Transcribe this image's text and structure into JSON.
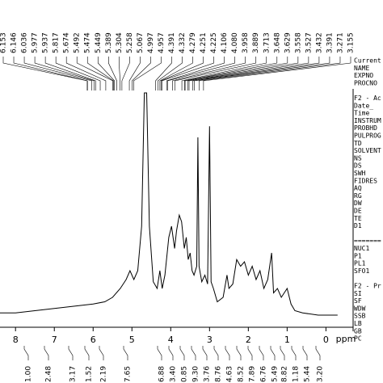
{
  "chart_data": {
    "type": "line",
    "xlabel": "ppm",
    "xlim": [
      8.4,
      -0.7
    ],
    "xticks": [
      8,
      7,
      6,
      5,
      4,
      3,
      2,
      1,
      0
    ],
    "ylim": [
      0,
      100
    ],
    "color": "#000000",
    "x": [
      8.4,
      8.0,
      7.5,
      7.0,
      6.5,
      6.0,
      5.7,
      5.5,
      5.3,
      5.15,
      5.05,
      4.95,
      4.85,
      4.75,
      4.68,
      4.62,
      4.55,
      4.45,
      4.35,
      4.28,
      4.22,
      4.15,
      4.05,
      3.98,
      3.9,
      3.85,
      3.78,
      3.72,
      3.65,
      3.6,
      3.55,
      3.5,
      3.45,
      3.4,
      3.33,
      3.3,
      3.27,
      3.2,
      3.12,
      3.05,
      3.0,
      2.96,
      2.9,
      2.8,
      2.65,
      2.55,
      2.5,
      2.4,
      2.3,
      2.2,
      2.1,
      2.0,
      1.9,
      1.8,
      1.7,
      1.6,
      1.5,
      1.4,
      1.35,
      1.25,
      1.15,
      1.0,
      0.9,
      0.8,
      0.6,
      0.2,
      -0.3
    ],
    "values": [
      1,
      1,
      2,
      3,
      4,
      5,
      6,
      8,
      12,
      16,
      20,
      16,
      20,
      40,
      100,
      100,
      40,
      15,
      12,
      20,
      12,
      18,
      35,
      40,
      30,
      38,
      45,
      42,
      30,
      35,
      25,
      28,
      20,
      18,
      22,
      80,
      22,
      15,
      18,
      14,
      85,
      15,
      12,
      6,
      8,
      18,
      12,
      14,
      25,
      22,
      24,
      18,
      22,
      16,
      20,
      12,
      16,
      28,
      10,
      12,
      8,
      12,
      5,
      2,
      1,
      0,
      0
    ],
    "peak_labels": [
      {
        "value": 6.153,
        "label": "6.153"
      },
      {
        "value": 6.146,
        "label": "6.146"
      },
      {
        "value": 6.036,
        "label": "6.036"
      },
      {
        "value": 5.977,
        "label": "5.977"
      },
      {
        "value": 5.937,
        "label": "5.937"
      },
      {
        "value": 5.817,
        "label": "5.817"
      },
      {
        "value": 5.674,
        "label": "5.674"
      },
      {
        "value": 5.492,
        "label": "5.492"
      },
      {
        "value": 5.474,
        "label": "5.474"
      },
      {
        "value": 5.449,
        "label": "5.449"
      },
      {
        "value": 5.389,
        "label": "5.389"
      },
      {
        "value": 5.304,
        "label": "5.304"
      },
      {
        "value": 5.258,
        "label": "5.258"
      },
      {
        "value": 5.067,
        "label": "5.067"
      },
      {
        "value": 4.997,
        "label": "4.997"
      },
      {
        "value": 4.957,
        "label": "4.957"
      },
      {
        "value": 4.391,
        "label": "4.391"
      },
      {
        "value": 4.332,
        "label": "4.332"
      },
      {
        "value": 4.279,
        "label": "4.279"
      },
      {
        "value": 4.251,
        "label": "4.251"
      },
      {
        "value": 4.225,
        "label": "4.225"
      },
      {
        "value": 4.106,
        "label": "4.106"
      },
      {
        "value": 4.08,
        "label": "4.080"
      },
      {
        "value": 3.958,
        "label": "3.958"
      },
      {
        "value": 3.889,
        "label": "3.889"
      },
      {
        "value": 3.713,
        "label": "3.713"
      },
      {
        "value": 3.648,
        "label": "3.648"
      },
      {
        "value": 3.629,
        "label": "3.629"
      },
      {
        "value": 3.558,
        "label": "3.558"
      },
      {
        "value": 3.527,
        "label": "3.527"
      },
      {
        "value": 3.432,
        "label": "3.432"
      },
      {
        "value": 3.391,
        "label": "3.391"
      },
      {
        "value": 3.271,
        "label": "3.271"
      },
      {
        "value": 3.155,
        "label": "3.155"
      }
    ],
    "integrals": [
      {
        "value": 1,
        "label": "1.00"
      },
      {
        "value": 2.48,
        "label": "2.48"
      },
      {
        "value": 3.17,
        "label": "3.17"
      },
      {
        "value": 1.52,
        "label": "1.52"
      },
      {
        "value": 2.19,
        "label": "2.19"
      },
      {
        "value": 7.65,
        "label": "7.65"
      },
      {
        "value": 6.88,
        "label": "6.88"
      },
      {
        "value": 3.4,
        "label": "3.40"
      },
      {
        "value": 0.85,
        "label": "0.85"
      },
      {
        "value": 9.3,
        "label": "9.30"
      },
      {
        "value": 3.76,
        "label": "3.76"
      },
      {
        "value": 8.76,
        "label": "8.76"
      },
      {
        "value": 4.63,
        "label": "4.63"
      },
      {
        "value": 8.52,
        "label": "8.52"
      },
      {
        "value": 7.89,
        "label": "7.89"
      },
      {
        "value": 6.76,
        "label": "6.76"
      },
      {
        "value": 5.49,
        "label": "5.49"
      },
      {
        "value": 8.82,
        "label": "8.82"
      },
      {
        "value": 1.18,
        "label": "1.18"
      },
      {
        "value": 5.44,
        "label": "5.44"
      },
      {
        "value": 3.2,
        "label": "3.20"
      }
    ],
    "parameter_groups": [
      [
        "Current",
        "NAME",
        "EXPNO",
        "PROCNO"
      ],
      [
        "F2 - Ac",
        "Date_",
        "Time",
        "INSTRUM",
        "PROBHD",
        "PULPROG",
        "TD",
        "SOLVENT",
        "NS",
        "DS",
        "SWH",
        "FIDRES",
        "AQ",
        "RG",
        "DW",
        "DE",
        "TE",
        "D1"
      ],
      [
        "=======",
        "NUC1",
        "P1",
        "PL1",
        "SFO1"
      ],
      [
        "F2 - Pr",
        "SI",
        "SF",
        "WDW",
        "SSB",
        "LB",
        "GB",
        "PC"
      ]
    ]
  }
}
